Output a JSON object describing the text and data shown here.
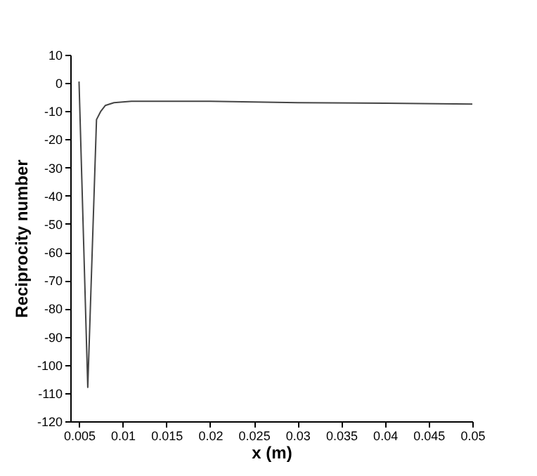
{
  "chart_data": {
    "type": "line",
    "xlabel": "x (m)",
    "ylabel": "Reciprocity number",
    "x": [
      0.005,
      0.006,
      0.007,
      0.0075,
      0.008,
      0.009,
      0.011,
      0.02,
      0.03,
      0.04,
      0.05
    ],
    "series": [
      {
        "color": "#444444",
        "values": [
          0.5,
          -108,
          -13,
          -10,
          -8,
          -7,
          -6.5,
          -6.5,
          -7,
          -7.2,
          -7.5
        ]
      }
    ],
    "xlim": [
      0.004,
      0.05
    ],
    "xticks": [
      0.005,
      0.01,
      0.015,
      0.02,
      0.025,
      0.03,
      0.035,
      0.04,
      0.045,
      0.05
    ],
    "ylim": [
      -120,
      10
    ],
    "yticks": [
      10,
      0,
      -10,
      -20,
      -30,
      -40,
      -50,
      -60,
      -70,
      -80,
      -90,
      -100,
      -110,
      -120
    ],
    "grid": false,
    "marker": "none",
    "line_style": "solid"
  }
}
